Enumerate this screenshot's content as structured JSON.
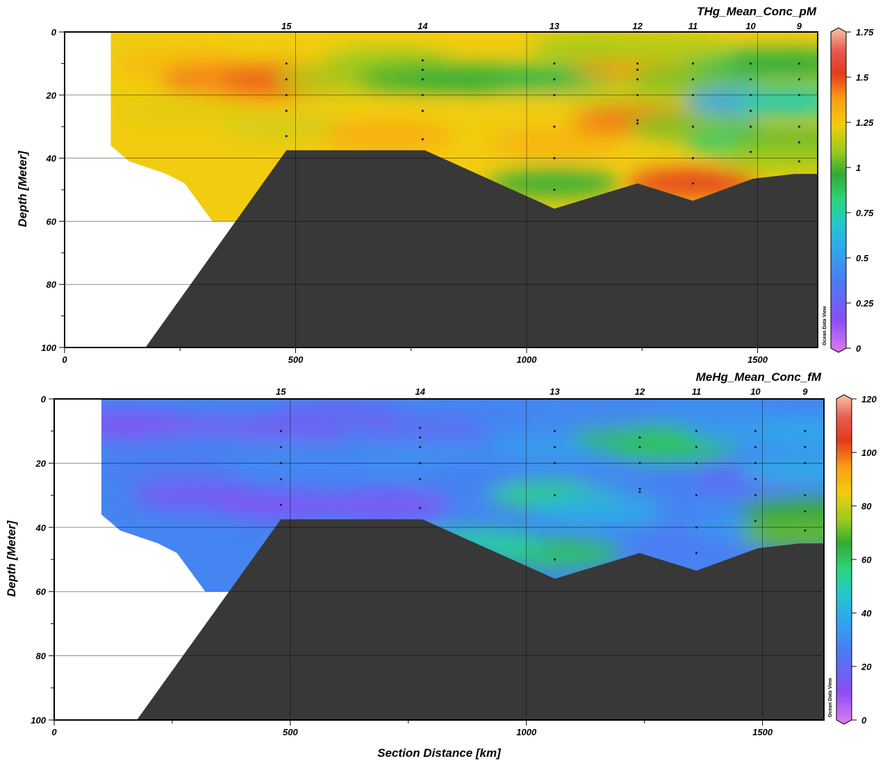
{
  "chart_data": [
    {
      "type": "heatmap",
      "title": "THg_Mean_Conc_pM",
      "xlabel": "",
      "ylabel": "Depth [Meter]",
      "xlim": [
        0,
        1630
      ],
      "ylim": [
        100,
        0
      ],
      "x_ticks": [
        "0",
        "500",
        "1000",
        "1500"
      ],
      "y_ticks": [
        "0",
        "20",
        "40",
        "60",
        "80",
        "100"
      ],
      "colorbar": {
        "min": 0,
        "max": 1.75,
        "ticks": [
          "0",
          "0.25",
          "0.5",
          "0.75",
          "1",
          "1.25",
          "1.5",
          "1.75"
        ]
      },
      "watermark": "Ocean Data View",
      "stations": [
        {
          "label": "15",
          "x": 480,
          "depths": [
            10,
            15,
            20,
            25,
            33
          ]
        },
        {
          "label": "14",
          "x": 775,
          "depths": [
            9,
            12,
            15,
            20,
            25,
            34
          ]
        },
        {
          "label": "13",
          "x": 1060,
          "depths": [
            10,
            15,
            20,
            30,
            40,
            50
          ]
        },
        {
          "label": "12",
          "x": 1240,
          "depths": [
            10,
            12,
            15,
            20,
            28,
            29
          ]
        },
        {
          "label": "11",
          "x": 1360,
          "depths": [
            10,
            15,
            20,
            30,
            40,
            48
          ]
        },
        {
          "label": "10",
          "x": 1485,
          "depths": [
            10,
            15,
            20,
            25,
            30,
            38
          ]
        },
        {
          "label": "9",
          "x": 1590,
          "depths": [
            10,
            15,
            20,
            30,
            35,
            41
          ]
        }
      ],
      "bottom_depth_profile": [
        [
          175,
          100
        ],
        [
          480,
          37.5
        ],
        [
          780,
          37.5
        ],
        [
          1060,
          56
        ],
        [
          1240,
          48
        ],
        [
          1360,
          53.5
        ],
        [
          1490,
          46.5
        ],
        [
          1580,
          45
        ],
        [
          1630,
          45
        ]
      ],
      "data_extent_profile": [
        [
          100,
          0
        ],
        [
          100,
          12
        ],
        [
          100,
          36
        ],
        [
          140,
          41
        ],
        [
          220,
          45
        ],
        [
          260,
          48
        ],
        [
          280,
          52
        ],
        [
          300,
          56
        ],
        [
          320,
          60
        ]
      ],
      "values": [
        {
          "x": 150,
          "y": 5,
          "v": 1.22
        },
        {
          "x": 250,
          "y": 10,
          "v": 1.28
        },
        {
          "x": 350,
          "y": 15,
          "v": 1.42
        },
        {
          "x": 420,
          "y": 17,
          "v": 1.38
        },
        {
          "x": 480,
          "y": 15,
          "v": 1.45
        },
        {
          "x": 250,
          "y": 25,
          "v": 1.2
        },
        {
          "x": 480,
          "y": 30,
          "v": 1.18
        },
        {
          "x": 600,
          "y": 15,
          "v": 1.12
        },
        {
          "x": 700,
          "y": 10,
          "v": 1.08
        },
        {
          "x": 775,
          "y": 15,
          "v": 0.98
        },
        {
          "x": 775,
          "y": 28,
          "v": 1.22
        },
        {
          "x": 700,
          "y": 33,
          "v": 1.32
        },
        {
          "x": 900,
          "y": 15,
          "v": 0.95
        },
        {
          "x": 1060,
          "y": 15,
          "v": 0.92
        },
        {
          "x": 1060,
          "y": 25,
          "v": 1.22
        },
        {
          "x": 1060,
          "y": 35,
          "v": 1.3
        },
        {
          "x": 1060,
          "y": 48,
          "v": 0.95
        },
        {
          "x": 1240,
          "y": 10,
          "v": 1.38
        },
        {
          "x": 1240,
          "y": 20,
          "v": 1.15
        },
        {
          "x": 1240,
          "y": 28,
          "v": 1.42
        },
        {
          "x": 1360,
          "y": 15,
          "v": 1.05
        },
        {
          "x": 1360,
          "y": 30,
          "v": 1.05
        },
        {
          "x": 1360,
          "y": 48,
          "v": 1.5
        },
        {
          "x": 1485,
          "y": 10,
          "v": 0.9
        },
        {
          "x": 1485,
          "y": 22,
          "v": 0.55
        },
        {
          "x": 1485,
          "y": 35,
          "v": 0.85
        },
        {
          "x": 1590,
          "y": 10,
          "v": 0.95
        },
        {
          "x": 1590,
          "y": 22,
          "v": 0.75
        },
        {
          "x": 1590,
          "y": 35,
          "v": 1.0
        },
        {
          "x": 1560,
          "y": 40,
          "v": 1.1
        },
        {
          "x": 1150,
          "y": 5,
          "v": 1.1
        },
        {
          "x": 1300,
          "y": 5,
          "v": 1.12
        }
      ]
    },
    {
      "type": "heatmap",
      "title": "MeHg_Mean_Conc_fM",
      "xlabel": "Section Distance [km]",
      "ylabel": "Depth [Meter]",
      "xlim": [
        0,
        1630
      ],
      "ylim": [
        100,
        0
      ],
      "x_ticks": [
        "0",
        "500",
        "1000",
        "1500"
      ],
      "y_ticks": [
        "0",
        "20",
        "40",
        "60",
        "80",
        "100"
      ],
      "colorbar": {
        "min": 0,
        "max": 120,
        "ticks": [
          "0",
          "20",
          "40",
          "60",
          "80",
          "100",
          "120"
        ]
      },
      "watermark": "Ocean Data View",
      "stations": [
        {
          "label": "15",
          "x": 480,
          "depths": [
            10,
            15,
            20,
            25,
            33
          ]
        },
        {
          "label": "14",
          "x": 775,
          "depths": [
            9,
            12,
            15,
            20,
            25,
            34
          ]
        },
        {
          "label": "13",
          "x": 1060,
          "depths": [
            10,
            15,
            20,
            30,
            50
          ]
        },
        {
          "label": "12",
          "x": 1240,
          "depths": [
            12,
            15,
            20,
            28,
            29
          ]
        },
        {
          "label": "11",
          "x": 1360,
          "depths": [
            10,
            15,
            20,
            30,
            40,
            48
          ]
        },
        {
          "label": "10",
          "x": 1485,
          "depths": [
            10,
            15,
            20,
            25,
            30,
            38
          ]
        },
        {
          "label": "9",
          "x": 1590,
          "depths": [
            10,
            15,
            20,
            30,
            35,
            41
          ]
        }
      ],
      "bottom_depth_profile": [
        [
          175,
          100
        ],
        [
          480,
          37.5
        ],
        [
          780,
          37.5
        ],
        [
          1060,
          56
        ],
        [
          1240,
          48
        ],
        [
          1360,
          53.5
        ],
        [
          1490,
          46.5
        ],
        [
          1580,
          45
        ],
        [
          1630,
          45
        ]
      ],
      "data_extent_profile": [
        [
          100,
          0
        ],
        [
          100,
          12
        ],
        [
          100,
          36
        ],
        [
          140,
          41
        ],
        [
          220,
          45
        ],
        [
          260,
          48
        ],
        [
          280,
          52
        ],
        [
          300,
          56
        ],
        [
          320,
          60
        ]
      ],
      "values": [
        {
          "x": 150,
          "y": 8,
          "v": 14
        },
        {
          "x": 300,
          "y": 10,
          "v": 14
        },
        {
          "x": 480,
          "y": 10,
          "v": 16
        },
        {
          "x": 300,
          "y": 15,
          "v": 28
        },
        {
          "x": 480,
          "y": 17,
          "v": 30
        },
        {
          "x": 250,
          "y": 22,
          "v": 26
        },
        {
          "x": 300,
          "y": 30,
          "v": 16
        },
        {
          "x": 480,
          "y": 33,
          "v": 14
        },
        {
          "x": 700,
          "y": 33,
          "v": 14
        },
        {
          "x": 775,
          "y": 10,
          "v": 22
        },
        {
          "x": 775,
          "y": 18,
          "v": 32
        },
        {
          "x": 900,
          "y": 25,
          "v": 28
        },
        {
          "x": 1060,
          "y": 15,
          "v": 36
        },
        {
          "x": 1060,
          "y": 30,
          "v": 55
        },
        {
          "x": 1060,
          "y": 48,
          "v": 60
        },
        {
          "x": 900,
          "y": 45,
          "v": 52
        },
        {
          "x": 1240,
          "y": 12,
          "v": 62
        },
        {
          "x": 1310,
          "y": 15,
          "v": 60
        },
        {
          "x": 1240,
          "y": 25,
          "v": 30
        },
        {
          "x": 1360,
          "y": 25,
          "v": 28
        },
        {
          "x": 1360,
          "y": 45,
          "v": 26
        },
        {
          "x": 1485,
          "y": 10,
          "v": 36
        },
        {
          "x": 1485,
          "y": 25,
          "v": 22
        },
        {
          "x": 1485,
          "y": 40,
          "v": 34
        },
        {
          "x": 1590,
          "y": 10,
          "v": 38
        },
        {
          "x": 1590,
          "y": 22,
          "v": 40
        },
        {
          "x": 1590,
          "y": 35,
          "v": 66
        },
        {
          "x": 1590,
          "y": 42,
          "v": 70
        },
        {
          "x": 1150,
          "y": 5,
          "v": 30
        },
        {
          "x": 1400,
          "y": 5,
          "v": 32
        },
        {
          "x": 600,
          "y": 5,
          "v": 20
        },
        {
          "x": 1150,
          "y": 35,
          "v": 40
        }
      ]
    }
  ]
}
